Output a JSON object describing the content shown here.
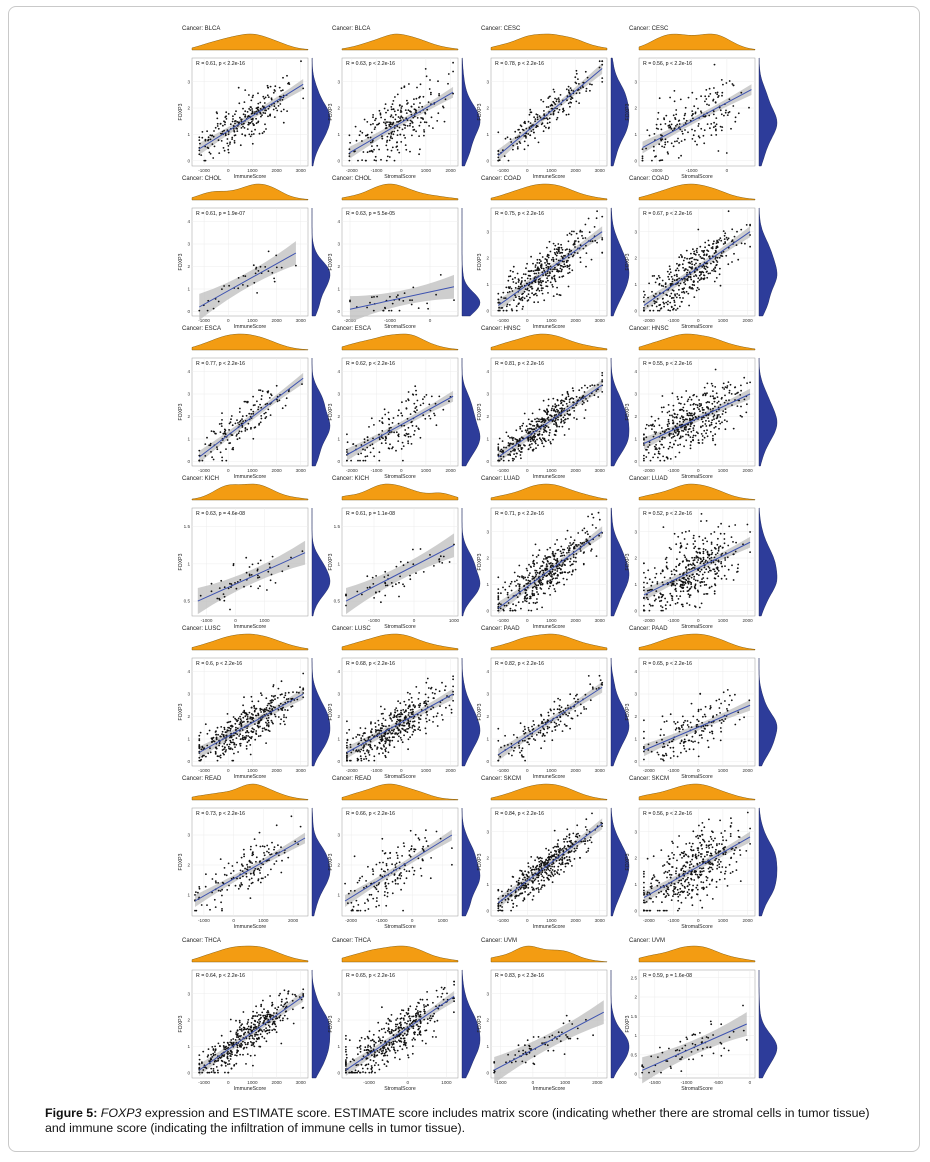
{
  "caption": {
    "label": "Figure 5:",
    "gene": "FOXP3",
    "text": " expression and ESTIMATE score. ESTIMATE score includes matrix score (indicating whether there are stromal cells in tumor tissue) and immune score (indicating the infiltration of immune cells in tumor tissue)."
  },
  "colors": {
    "density_top": "#f39c12",
    "density_right": "#2d3c9a",
    "points": "#111111",
    "fit": "#3d52b0",
    "band": "#bdbdbd"
  },
  "chart_data": [
    {
      "type": "scatter",
      "title": "Cancer: BLCA",
      "stat": "R = 0.61, p < 2.2e-16",
      "xlabel": "ImmuneScore",
      "ylabel": "FOXP3",
      "xticks": [
        -1000,
        0,
        1000,
        2000,
        3000
      ],
      "yticks": [
        0,
        1,
        2,
        3
      ],
      "xlim": [
        -1500,
        3300
      ],
      "ylim": [
        -0.2,
        3.9
      ],
      "fit": [
        -1200,
        0.45,
        3100,
        2.9
      ],
      "n": 260,
      "spread": 0.42
    },
    {
      "type": "scatter",
      "title": "Cancer: BLCA",
      "stat": "R = 0.63, p < 2.2e-16",
      "xlabel": "StromalScore",
      "ylabel": "FOXP3",
      "xticks": [
        -2000,
        -1000,
        0,
        1000,
        2000
      ],
      "yticks": [
        0,
        1,
        2,
        3
      ],
      "xlim": [
        -2400,
        2300
      ],
      "ylim": [
        -0.2,
        3.9
      ],
      "fit": [
        -2100,
        0.3,
        2100,
        2.6
      ],
      "n": 260,
      "spread": 0.55
    },
    {
      "type": "scatter",
      "title": "Cancer: CESC",
      "stat": "R = 0.78, p < 2.2e-16",
      "xlabel": "ImmuneScore",
      "ylabel": "FOXP3",
      "xticks": [
        -1000,
        0,
        1000,
        2000,
        3000
      ],
      "yticks": [
        0,
        1,
        2,
        3
      ],
      "xlim": [
        -1500,
        3300
      ],
      "ylim": [
        -0.2,
        3.9
      ],
      "fit": [
        -1200,
        0.2,
        3100,
        3.5
      ],
      "n": 200,
      "spread": 0.38
    },
    {
      "type": "scatter",
      "title": "Cancer: CESC",
      "stat": "R = 0.56, p < 2.2e-16",
      "xlabel": "StromalScore",
      "ylabel": "FOXP3",
      "xticks": [
        -2000,
        -1000,
        0
      ],
      "yticks": [
        0,
        1,
        2,
        3
      ],
      "xlim": [
        -2500,
        800
      ],
      "ylim": [
        -0.2,
        3.9
      ],
      "fit": [
        -2400,
        0.5,
        700,
        2.7
      ],
      "n": 200,
      "spread": 0.6
    },
    {
      "type": "scatter",
      "title": "Cancer: CHOL",
      "stat": "R = 0.61, p = 1.9e-07",
      "xlabel": "ImmuneScore",
      "ylabel": "FOXP3",
      "xticks": [
        -1000,
        0,
        1000,
        2000,
        3000
      ],
      "yticks": [
        0,
        1,
        2,
        3,
        4
      ],
      "xlim": [
        -1500,
        3300
      ],
      "ylim": [
        -0.2,
        4.6
      ],
      "fit": [
        -1200,
        0.2,
        2800,
        2.6
      ],
      "n": 36,
      "spread": 0.35
    },
    {
      "type": "scatter",
      "title": "Cancer: CHOL",
      "stat": "R = 0.63, p = 5.5e-05",
      "xlabel": "StromalScore",
      "ylabel": "FOXP3",
      "xticks": [
        -2000,
        -1000,
        0
      ],
      "yticks": [
        0,
        1,
        2,
        3,
        4
      ],
      "xlim": [
        -2200,
        700
      ],
      "ylim": [
        -0.2,
        4.6
      ],
      "fit": [
        -2000,
        0.1,
        600,
        1.1
      ],
      "n": 36,
      "spread": 0.35
    },
    {
      "type": "scatter",
      "title": "Cancer: COAD",
      "stat": "R = 0.75, p < 2.2e-16",
      "xlabel": "ImmuneScore",
      "ylabel": "FOXP3",
      "xticks": [
        -1000,
        0,
        1000,
        2000,
        3000
      ],
      "yticks": [
        0,
        1,
        2,
        3
      ],
      "xlim": [
        -1500,
        3300
      ],
      "ylim": [
        -0.2,
        3.9
      ],
      "fit": [
        -1200,
        0.2,
        3100,
        3.0
      ],
      "n": 380,
      "spread": 0.42
    },
    {
      "type": "scatter",
      "title": "Cancer: COAD",
      "stat": "R = 0.67, p < 2.2e-16",
      "xlabel": "StromalScore",
      "ylabel": "FOXP3",
      "xticks": [
        -2000,
        -1000,
        0,
        1000,
        2000
      ],
      "yticks": [
        0,
        1,
        2,
        3
      ],
      "xlim": [
        -2400,
        2300
      ],
      "ylim": [
        -0.2,
        3.9
      ],
      "fit": [
        -2200,
        0.2,
        2100,
        3.0
      ],
      "n": 380,
      "spread": 0.5
    },
    {
      "type": "scatter",
      "title": "Cancer: ESCA",
      "stat": "R = 0.77, p < 2.2e-16",
      "xlabel": "ImmuneScore",
      "ylabel": "FOXP3",
      "xticks": [
        -1000,
        0,
        1000,
        2000,
        3000
      ],
      "yticks": [
        0,
        1,
        2,
        3,
        4
      ],
      "xlim": [
        -1500,
        3300
      ],
      "ylim": [
        -0.2,
        4.6
      ],
      "fit": [
        -1200,
        0.2,
        3100,
        3.7
      ],
      "n": 160,
      "spread": 0.45
    },
    {
      "type": "scatter",
      "title": "Cancer: ESCA",
      "stat": "R = 0.62, p < 2.2e-16",
      "xlabel": "StromalScore",
      "ylabel": "FOXP3",
      "xticks": [
        -2000,
        -1000,
        0,
        1000,
        2000
      ],
      "yticks": [
        0,
        1,
        2,
        3,
        4
      ],
      "xlim": [
        -2400,
        2300
      ],
      "ylim": [
        -0.2,
        4.6
      ],
      "fit": [
        -2200,
        0.3,
        2100,
        2.9
      ],
      "n": 160,
      "spread": 0.6
    },
    {
      "type": "scatter",
      "title": "Cancer: HNSC",
      "stat": "R = 0.81, p < 2.2e-16",
      "xlabel": "ImmuneScore",
      "ylabel": "FOXP3",
      "xticks": [
        -1000,
        0,
        1000,
        2000,
        3000
      ],
      "yticks": [
        0,
        1,
        2,
        3,
        4
      ],
      "xlim": [
        -1500,
        3300
      ],
      "ylim": [
        -0.2,
        4.6
      ],
      "fit": [
        -1200,
        0.2,
        3100,
        3.4
      ],
      "n": 420,
      "spread": 0.42
    },
    {
      "type": "scatter",
      "title": "Cancer: HNSC",
      "stat": "R = 0.55, p < 2.2e-16",
      "xlabel": "StromalScore",
      "ylabel": "FOXP3",
      "xticks": [
        -2000,
        -1000,
        0,
        1000,
        2000
      ],
      "yticks": [
        0,
        1,
        2,
        3,
        4
      ],
      "xlim": [
        -2400,
        2300
      ],
      "ylim": [
        -0.2,
        4.6
      ],
      "fit": [
        -2200,
        0.8,
        2100,
        3.0
      ],
      "n": 420,
      "spread": 0.62
    },
    {
      "type": "scatter",
      "title": "Cancer: KICH",
      "stat": "R = 0.63, p = 4.6e-08",
      "xlabel": "ImmuneScore",
      "ylabel": "FOXP3",
      "xticks": [
        -1000,
        0,
        1000
      ],
      "yticks": [
        0.5,
        1.0,
        1.5
      ],
      "xlim": [
        -1500,
        2500
      ],
      "ylim": [
        0.3,
        1.75
      ],
      "fit": [
        -1300,
        0.5,
        2400,
        1.15
      ],
      "n": 55,
      "spread": 0.12
    },
    {
      "type": "scatter",
      "title": "Cancer: KICH",
      "stat": "R = 0.61, p = 1.1e-08",
      "xlabel": "StromalScore",
      "ylabel": "FOXP3",
      "xticks": [
        -1000,
        0,
        1000
      ],
      "yticks": [
        0.5,
        1.0,
        1.5
      ],
      "xlim": [
        -1800,
        1100
      ],
      "ylim": [
        0.3,
        1.75
      ],
      "fit": [
        -1700,
        0.5,
        1000,
        1.25
      ],
      "n": 55,
      "spread": 0.12
    },
    {
      "type": "scatter",
      "title": "Cancer: LUAD",
      "stat": "R = 0.71, p < 2.2e-16",
      "xlabel": "ImmuneScore",
      "ylabel": "FOXP3",
      "xticks": [
        -1000,
        0,
        1000,
        2000,
        3000
      ],
      "yticks": [
        0,
        1,
        2,
        3
      ],
      "xlim": [
        -1500,
        3300
      ],
      "ylim": [
        -0.2,
        3.9
      ],
      "fit": [
        -1200,
        0.1,
        3100,
        3.0
      ],
      "n": 420,
      "spread": 0.45
    },
    {
      "type": "scatter",
      "title": "Cancer: LUAD",
      "stat": "R = 0.52, p < 2.2e-16",
      "xlabel": "StromalScore",
      "ylabel": "FOXP3",
      "xticks": [
        -2000,
        -1000,
        0,
        1000,
        2000
      ],
      "yticks": [
        0,
        1,
        2,
        3
      ],
      "xlim": [
        -2400,
        2300
      ],
      "ylim": [
        -0.2,
        3.9
      ],
      "fit": [
        -2200,
        0.6,
        2100,
        2.6
      ],
      "n": 420,
      "spread": 0.6
    },
    {
      "type": "scatter",
      "title": "Cancer: LUSC",
      "stat": "R = 0.6, p < 2.2e-16",
      "xlabel": "ImmuneScore",
      "ylabel": "FOXP3",
      "xticks": [
        -1000,
        0,
        1000,
        2000,
        3000
      ],
      "yticks": [
        0,
        1,
        2,
        3,
        4
      ],
      "xlim": [
        -1500,
        3300
      ],
      "ylim": [
        -0.2,
        4.6
      ],
      "fit": [
        -1200,
        0.4,
        3100,
        3.0
      ],
      "n": 420,
      "spread": 0.45
    },
    {
      "type": "scatter",
      "title": "Cancer: LUSC",
      "stat": "R = 0.68, p < 2.2e-16",
      "xlabel": "StromalScore",
      "ylabel": "FOXP3",
      "xticks": [
        -2000,
        -1000,
        0,
        1000,
        2000
      ],
      "yticks": [
        0,
        1,
        2,
        3,
        4
      ],
      "xlim": [
        -2400,
        2300
      ],
      "ylim": [
        -0.2,
        4.6
      ],
      "fit": [
        -2200,
        0.4,
        2100,
        3.0
      ],
      "n": 420,
      "spread": 0.5
    },
    {
      "type": "scatter",
      "title": "Cancer: PAAD",
      "stat": "R = 0.82, p < 2.2e-16",
      "xlabel": "ImmuneScore",
      "ylabel": "FOXP3",
      "xticks": [
        -1000,
        0,
        1000,
        2000,
        3000
      ],
      "yticks": [
        0,
        1,
        2,
        3,
        4
      ],
      "xlim": [
        -1500,
        3300
      ],
      "ylim": [
        -0.2,
        4.6
      ],
      "fit": [
        -1200,
        0.3,
        3100,
        3.3
      ],
      "n": 170,
      "spread": 0.4
    },
    {
      "type": "scatter",
      "title": "Cancer: PAAD",
      "stat": "R = 0.65, p < 2.2e-16",
      "xlabel": "StromalScore",
      "ylabel": "FOXP3",
      "xticks": [
        -2000,
        -1000,
        0,
        1000,
        2000
      ],
      "yticks": [
        0,
        1,
        2,
        3,
        4
      ],
      "xlim": [
        -2400,
        2300
      ],
      "ylim": [
        -0.2,
        4.6
      ],
      "fit": [
        -2200,
        0.5,
        2100,
        2.5
      ],
      "n": 170,
      "spread": 0.55
    },
    {
      "type": "scatter",
      "title": "Cancer: READ",
      "stat": "R = 0.73, p < 2.2e-16",
      "xlabel": "ImmuneScore",
      "ylabel": "FOXP3",
      "xticks": [
        -1000,
        0,
        1000,
        2000
      ],
      "yticks": [
        1,
        2,
        3
      ],
      "xlim": [
        -1400,
        2500
      ],
      "ylim": [
        0.3,
        3.9
      ],
      "fit": [
        -1300,
        0.8,
        2400,
        2.9
      ],
      "n": 160,
      "spread": 0.4
    },
    {
      "type": "scatter",
      "title": "Cancer: READ",
      "stat": "R = 0.66, p < 2.2e-16",
      "xlabel": "StromalScore",
      "ylabel": "FOXP3",
      "xticks": [
        -2000,
        -1000,
        0,
        1000
      ],
      "yticks": [
        1,
        2,
        3
      ],
      "xlim": [
        -2300,
        1500
      ],
      "ylim": [
        0.3,
        3.9
      ],
      "fit": [
        -2200,
        0.8,
        1300,
        3.0
      ],
      "n": 160,
      "spread": 0.5
    },
    {
      "type": "scatter",
      "title": "Cancer: SKCM",
      "stat": "R = 0.84, p < 2.2e-16",
      "xlabel": "ImmuneScore",
      "ylabel": "FOXP3",
      "xticks": [
        -1000,
        0,
        1000,
        2000,
        3000
      ],
      "yticks": [
        0,
        1,
        2,
        3
      ],
      "xlim": [
        -1500,
        3300
      ],
      "ylim": [
        -0.2,
        3.9
      ],
      "fit": [
        -1200,
        0.3,
        3100,
        3.3
      ],
      "n": 420,
      "spread": 0.35
    },
    {
      "type": "scatter",
      "title": "Cancer: SKCM",
      "stat": "R = 0.56, p < 2.2e-16",
      "xlabel": "StromalScore",
      "ylabel": "FOXP3",
      "xticks": [
        -2000,
        -1000,
        0,
        1000,
        2000
      ],
      "yticks": [
        0,
        1,
        2,
        3
      ],
      "xlim": [
        -2400,
        2300
      ],
      "ylim": [
        -0.2,
        3.9
      ],
      "fit": [
        -2200,
        0.5,
        2100,
        2.8
      ],
      "n": 420,
      "spread": 0.6
    },
    {
      "type": "scatter",
      "title": "Cancer: THCA",
      "stat": "R = 0.64, p < 2.2e-16",
      "xlabel": "ImmuneScore",
      "ylabel": "FOXP3",
      "xticks": [
        -1000,
        0,
        1000,
        2000,
        3000
      ],
      "yticks": [
        0,
        1,
        2,
        3
      ],
      "xlim": [
        -1500,
        3300
      ],
      "ylim": [
        -0.2,
        3.9
      ],
      "fit": [
        -1200,
        0.1,
        3100,
        2.9
      ],
      "n": 420,
      "spread": 0.38
    },
    {
      "type": "scatter",
      "title": "Cancer: THCA",
      "stat": "R = 0.65, p < 2.2e-16",
      "xlabel": "StromalScore",
      "ylabel": "FOXP3",
      "xticks": [
        -1000,
        0,
        1000
      ],
      "yticks": [
        0,
        1,
        2,
        3
      ],
      "xlim": [
        -1700,
        1300
      ],
      "ylim": [
        -0.2,
        3.9
      ],
      "fit": [
        -1600,
        0.1,
        1200,
        2.9
      ],
      "n": 420,
      "spread": 0.45
    },
    {
      "type": "scatter",
      "title": "Cancer: UVM",
      "stat": "R = 0.83, p < 2.3e-16",
      "xlabel": "ImmuneScore",
      "ylabel": "FOXP3",
      "xticks": [
        -1000,
        0,
        1000,
        2000
      ],
      "yticks": [
        0,
        1,
        2,
        3
      ],
      "xlim": [
        -1300,
        2300
      ],
      "ylim": [
        -0.2,
        3.9
      ],
      "fit": [
        -1200,
        0.1,
        2200,
        2.3
      ],
      "n": 70,
      "spread": 0.3
    },
    {
      "type": "scatter",
      "title": "Cancer: UVM",
      "stat": "R = 0.59, p = 1.6e-08",
      "xlabel": "StromalScore",
      "ylabel": "FOXP3",
      "xticks": [
        -1500,
        -1000,
        -500,
        0
      ],
      "yticks": [
        0.0,
        0.5,
        1.0,
        1.5,
        2.0,
        2.5
      ],
      "xlim": [
        -1750,
        80
      ],
      "ylim": [
        -0.1,
        2.7
      ],
      "fit": [
        -1700,
        0.1,
        -50,
        1.3
      ],
      "n": 70,
      "spread": 0.25
    }
  ]
}
